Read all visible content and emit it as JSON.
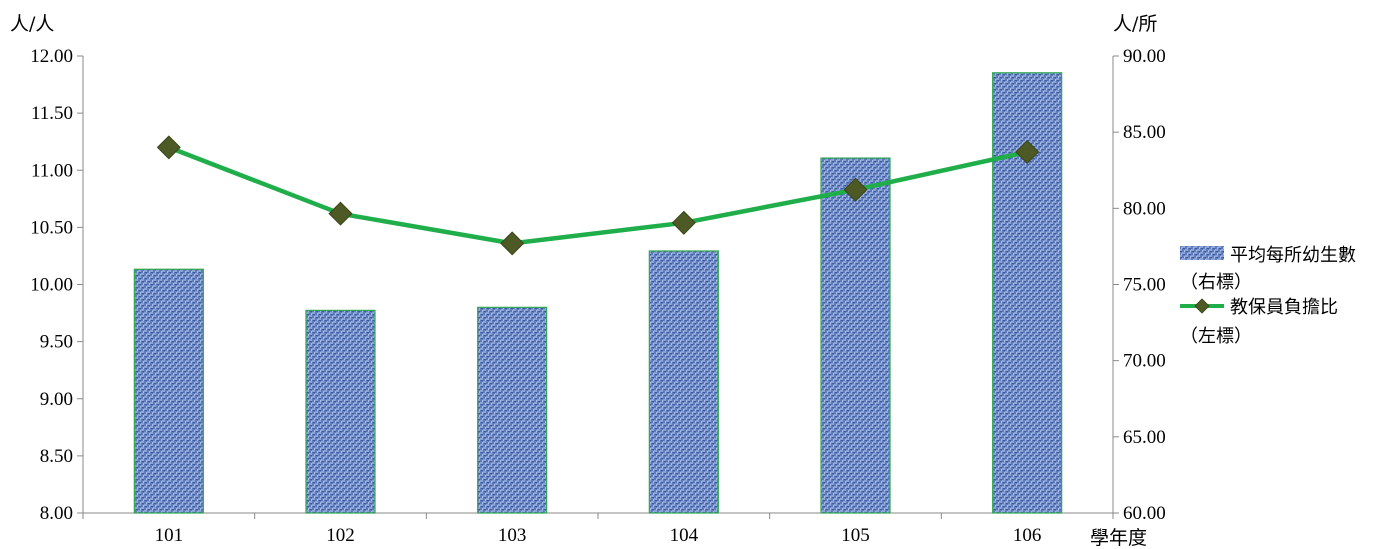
{
  "chart_data": {
    "type": "bar",
    "categories": [
      "101",
      "102",
      "103",
      "104",
      "105",
      "106"
    ],
    "xlabel": "學年度",
    "left_axis": {
      "unit": "人/人",
      "ylim": [
        8.0,
        12.0
      ],
      "ticks": [
        "8.00",
        "8.50",
        "9.00",
        "9.50",
        "10.00",
        "10.50",
        "11.00",
        "11.50",
        "12.00"
      ]
    },
    "right_axis": {
      "unit": "人/所",
      "ylim": [
        60.0,
        90.0
      ],
      "ticks": [
        "60.00",
        "65.00",
        "70.00",
        "75.00",
        "80.00",
        "85.00",
        "90.00"
      ]
    },
    "series": [
      {
        "name_lines": [
          "平均每所幼生數",
          "（右標）"
        ],
        "type": "bar",
        "axis": "right",
        "color": "#5b78b8",
        "values": [
          76.0,
          73.3,
          73.5,
          77.2,
          83.3,
          88.9
        ]
      },
      {
        "name_lines": [
          "教保員負擔比",
          "（左標）"
        ],
        "type": "line",
        "axis": "left",
        "color": "#1fae4a",
        "marker_color": "#4e5a25",
        "values": [
          11.2,
          10.62,
          10.36,
          10.54,
          10.83,
          11.16
        ]
      }
    ],
    "grid": false,
    "legend_position": "right"
  }
}
